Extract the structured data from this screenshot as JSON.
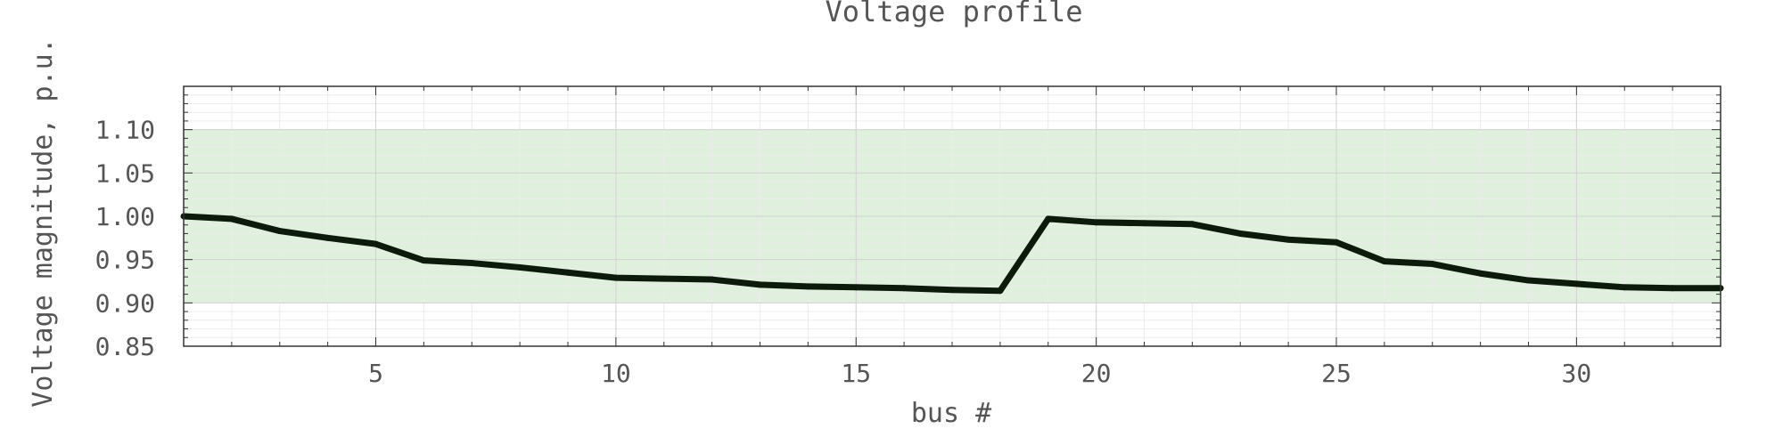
{
  "chart_data": {
    "type": "line",
    "title": "Voltage profile",
    "xlabel": "bus #",
    "ylabel": "Voltage magnitude, p.u.",
    "xlim": [
      1,
      33
    ],
    "ylim": [
      0.85,
      1.15
    ],
    "x_ticks": [
      5,
      10,
      15,
      20,
      25,
      30
    ],
    "x_tick_labels": [
      "5",
      "10",
      "15",
      "20",
      "25",
      "30"
    ],
    "y_ticks": [
      0.85,
      0.9,
      0.95,
      1.0,
      1.05,
      1.1
    ],
    "y_tick_labels": [
      "0.85",
      "0.90",
      "0.95",
      "1.00",
      "1.05",
      "1.10"
    ],
    "grid": true,
    "band": {
      "low": 0.9,
      "high": 1.1,
      "color": "#dff0dc"
    },
    "line_color": "#0c1a0c",
    "series": [
      {
        "x": [
          1,
          2,
          3,
          4,
          5,
          6,
          7,
          8,
          9,
          10,
          11,
          12,
          13,
          14,
          15,
          16,
          17,
          18,
          19,
          20,
          21,
          22,
          23,
          24,
          25,
          26,
          27,
          28,
          29,
          30,
          31,
          32,
          33
        ],
        "values": [
          1.0,
          0.997,
          0.983,
          0.975,
          0.968,
          0.949,
          0.946,
          0.941,
          0.935,
          0.929,
          0.928,
          0.927,
          0.921,
          0.919,
          0.918,
          0.917,
          0.915,
          0.914,
          0.997,
          0.993,
          0.992,
          0.991,
          0.98,
          0.973,
          0.97,
          0.948,
          0.945,
          0.934,
          0.926,
          0.922,
          0.918,
          0.917,
          0.917
        ]
      }
    ]
  }
}
